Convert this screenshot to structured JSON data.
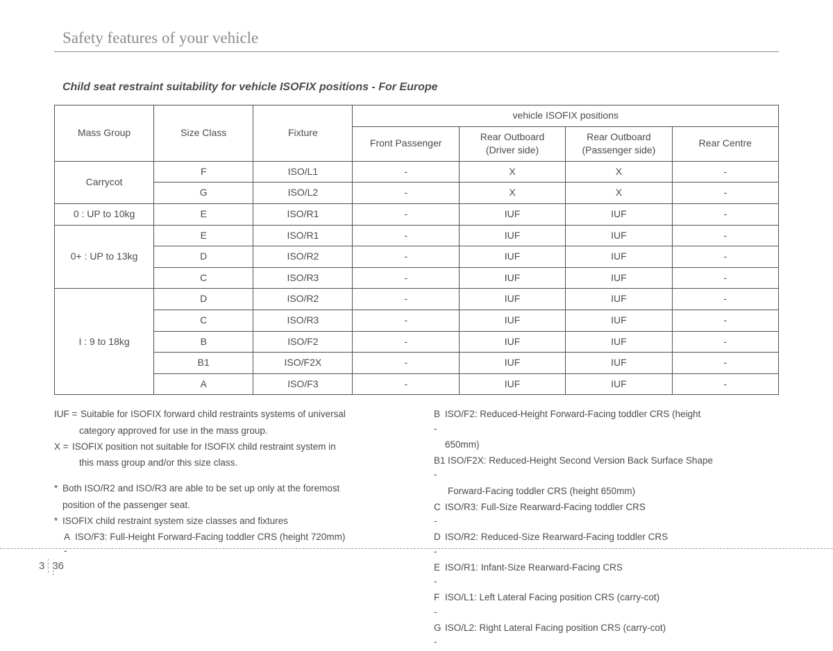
{
  "header": {
    "title": "Safety features of your vehicle"
  },
  "section": {
    "heading": "Child seat restraint suitability for vehicle ISOFIX positions - For Europe"
  },
  "table": {
    "columns": {
      "mass_group": "Mass Group",
      "size_class": "Size Class",
      "fixture": "Fixture",
      "positions_group": "vehicle  ISOFIX positions",
      "front_passenger": "Front Passenger",
      "rear_driver": "Rear Outboard\n(Driver side)",
      "rear_passenger": "Rear Outboard\n(Passenger side)",
      "rear_centre": "Rear Centre"
    },
    "groups": [
      {
        "label": "Carrycot",
        "rows": [
          {
            "size": "F",
            "fixture": "ISO/L1",
            "fp": "-",
            "rd": "X",
            "rp": "X",
            "rc": "-"
          },
          {
            "size": "G",
            "fixture": "ISO/L2",
            "fp": "-",
            "rd": "X",
            "rp": "X",
            "rc": "-"
          }
        ]
      },
      {
        "label": "0 : UP to 10kg",
        "rows": [
          {
            "size": "E",
            "fixture": "ISO/R1",
            "fp": "-",
            "rd": "IUF",
            "rp": "IUF",
            "rc": "-"
          }
        ]
      },
      {
        "label": "0+ : UP to 13kg",
        "rows": [
          {
            "size": "E",
            "fixture": "ISO/R1",
            "fp": "-",
            "rd": "IUF",
            "rp": "IUF",
            "rc": "-"
          },
          {
            "size": "D",
            "fixture": "ISO/R2",
            "fp": "-",
            "rd": "IUF",
            "rp": "IUF",
            "rc": "-"
          },
          {
            "size": "C",
            "fixture": "ISO/R3",
            "fp": "-",
            "rd": "IUF",
            "rp": "IUF",
            "rc": "-"
          }
        ]
      },
      {
        "label": "I : 9 to 18kg",
        "rows": [
          {
            "size": "D",
            "fixture": "ISO/R2",
            "fp": "-",
            "rd": "IUF",
            "rp": "IUF",
            "rc": "-"
          },
          {
            "size": "C",
            "fixture": "ISO/R3",
            "fp": "-",
            "rd": "IUF",
            "rp": "IUF",
            "rc": "-"
          },
          {
            "size": "B",
            "fixture": "ISO/F2",
            "fp": "-",
            "rd": "IUF",
            "rp": "IUF",
            "rc": "-"
          },
          {
            "size": "B1",
            "fixture": "ISO/F2X",
            "fp": "-",
            "rd": "IUF",
            "rp": "IUF",
            "rc": "-"
          },
          {
            "size": "A",
            "fixture": "ISO/F3",
            "fp": "-",
            "rd": "IUF",
            "rp": "IUF",
            "rc": "-"
          }
        ]
      }
    ]
  },
  "notes": {
    "left": {
      "iuf": {
        "key": "IUF =",
        "l1": "Suitable for ISOFIX forward child restraints systems of universal",
        "l2": "category approved for use in the mass group."
      },
      "x": {
        "key": "X =",
        "l1": "ISOFIX position not suitable for ISOFIX child restraint system in",
        "l2": "this mass group and/or this size class."
      },
      "s1": {
        "key": "*",
        "l1": "Both ISO/R2 and ISO/R3 are able to be set up only at the foremost",
        "l2": "position of the passenger seat."
      },
      "s2": {
        "key": "*",
        "l1": "ISOFIX child restraint system size classes and fixtures"
      },
      "a": {
        "key": "A -",
        "text": "ISO/F3: Full-Height Forward-Facing toddler CRS (height 720mm)"
      }
    },
    "right": {
      "b": {
        "key": "B - ",
        "l1": "ISO/F2: Reduced-Height Forward-Facing toddler CRS (height",
        "l2": "650mm)"
      },
      "b1": {
        "key": "B1 - ",
        "l1": "ISO/F2X: Reduced-Height Second Version Back Surface Shape",
        "l2": "Forward-Facing toddler CRS (height 650mm)"
      },
      "c": {
        "key": "C - ",
        "text": "ISO/R3: Full-Size Rearward-Facing toddler CRS"
      },
      "d": {
        "key": "D - ",
        "text": "ISO/R2: Reduced-Size Rearward-Facing toddler CRS"
      },
      "e": {
        "key": "E - ",
        "text": "ISO/R1: Infant-Size Rearward-Facing CRS"
      },
      "f": {
        "key": "F - ",
        "text": "ISO/L1: Left Lateral Facing position CRS (carry-cot)"
      },
      "g": {
        "key": "G - ",
        "text": "ISO/L2: Right Lateral Facing position CRS (carry-cot)"
      }
    }
  },
  "footer": {
    "chapter": "3",
    "page": "36"
  }
}
